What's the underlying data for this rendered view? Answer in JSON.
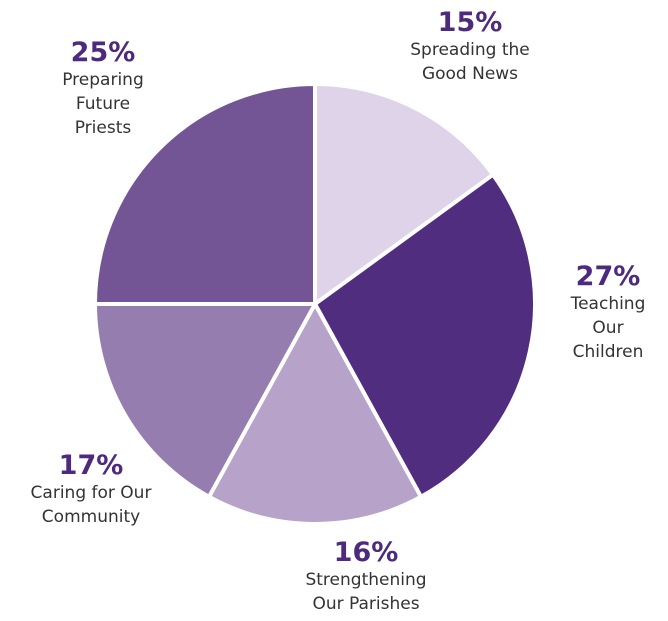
{
  "chart_data": {
    "type": "pie",
    "slices": [
      {
        "label": "Spreading the\nGood News",
        "value": 15,
        "value_label": "15%",
        "color": "#ded3e8"
      },
      {
        "label": "Teaching\nOur\nChildren",
        "value": 27,
        "value_label": "27%",
        "color": "#512d80"
      },
      {
        "label": "Strengthening\nOur Parishes",
        "value": 16,
        "value_label": "16%",
        "color": "#b7a3c9"
      },
      {
        "label": "Caring for Our\nCommunity",
        "value": 17,
        "value_label": "17%",
        "color": "#967daf"
      },
      {
        "label": "Preparing\nFuture\nPriests",
        "value": 25,
        "value_label": "25%",
        "color": "#735596"
      }
    ],
    "start": "12 o'clock",
    "direction": "clockwise",
    "legend": "none"
  }
}
